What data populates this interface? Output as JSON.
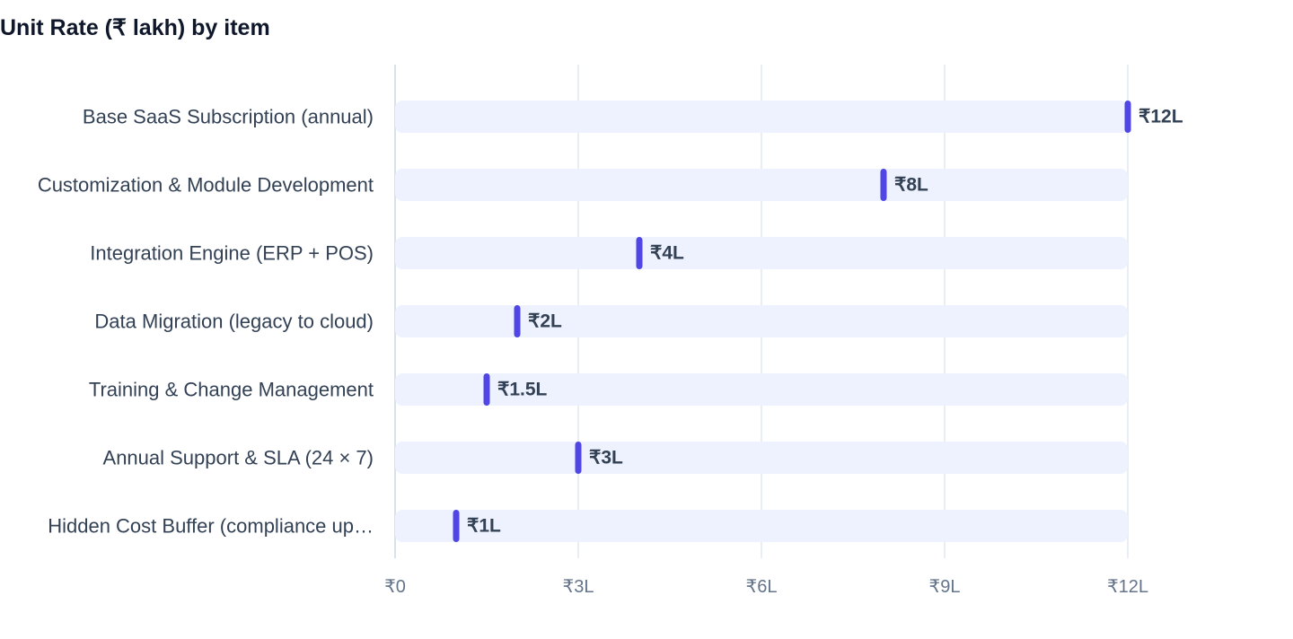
{
  "chart_data": {
    "type": "bar",
    "title": "Unit Rate (₹ lakh) by item",
    "xlabel": "",
    "ylabel": "",
    "categories": [
      "Base SaaS Subscription (annual)",
      "Customization & Module Development",
      "Integration Engine (ERP + POS)",
      "Data Migration (legacy to cloud)",
      "Training & Change Management",
      "Annual Support & SLA (24 × 7)",
      "Hidden Cost Buffer (compliance up…"
    ],
    "values": [
      12,
      8,
      4,
      2,
      1.5,
      3,
      1
    ],
    "value_labels": [
      "₹12L",
      "₹8L",
      "₹4L",
      "₹2L",
      "₹1.5L",
      "₹3L",
      "₹1L"
    ],
    "xlim": [
      0,
      12
    ],
    "ticks": [
      0,
      3,
      6,
      9,
      12
    ],
    "tick_labels": [
      "₹0",
      "₹3L",
      "₹6L",
      "₹9L",
      "₹12L"
    ],
    "grid": true,
    "orientation": "horizontal",
    "colors": {
      "marker": "#4f46e5",
      "track": "#eef2ff",
      "grid": "#e2e8f0",
      "axis": "#cbd5e1"
    }
  }
}
